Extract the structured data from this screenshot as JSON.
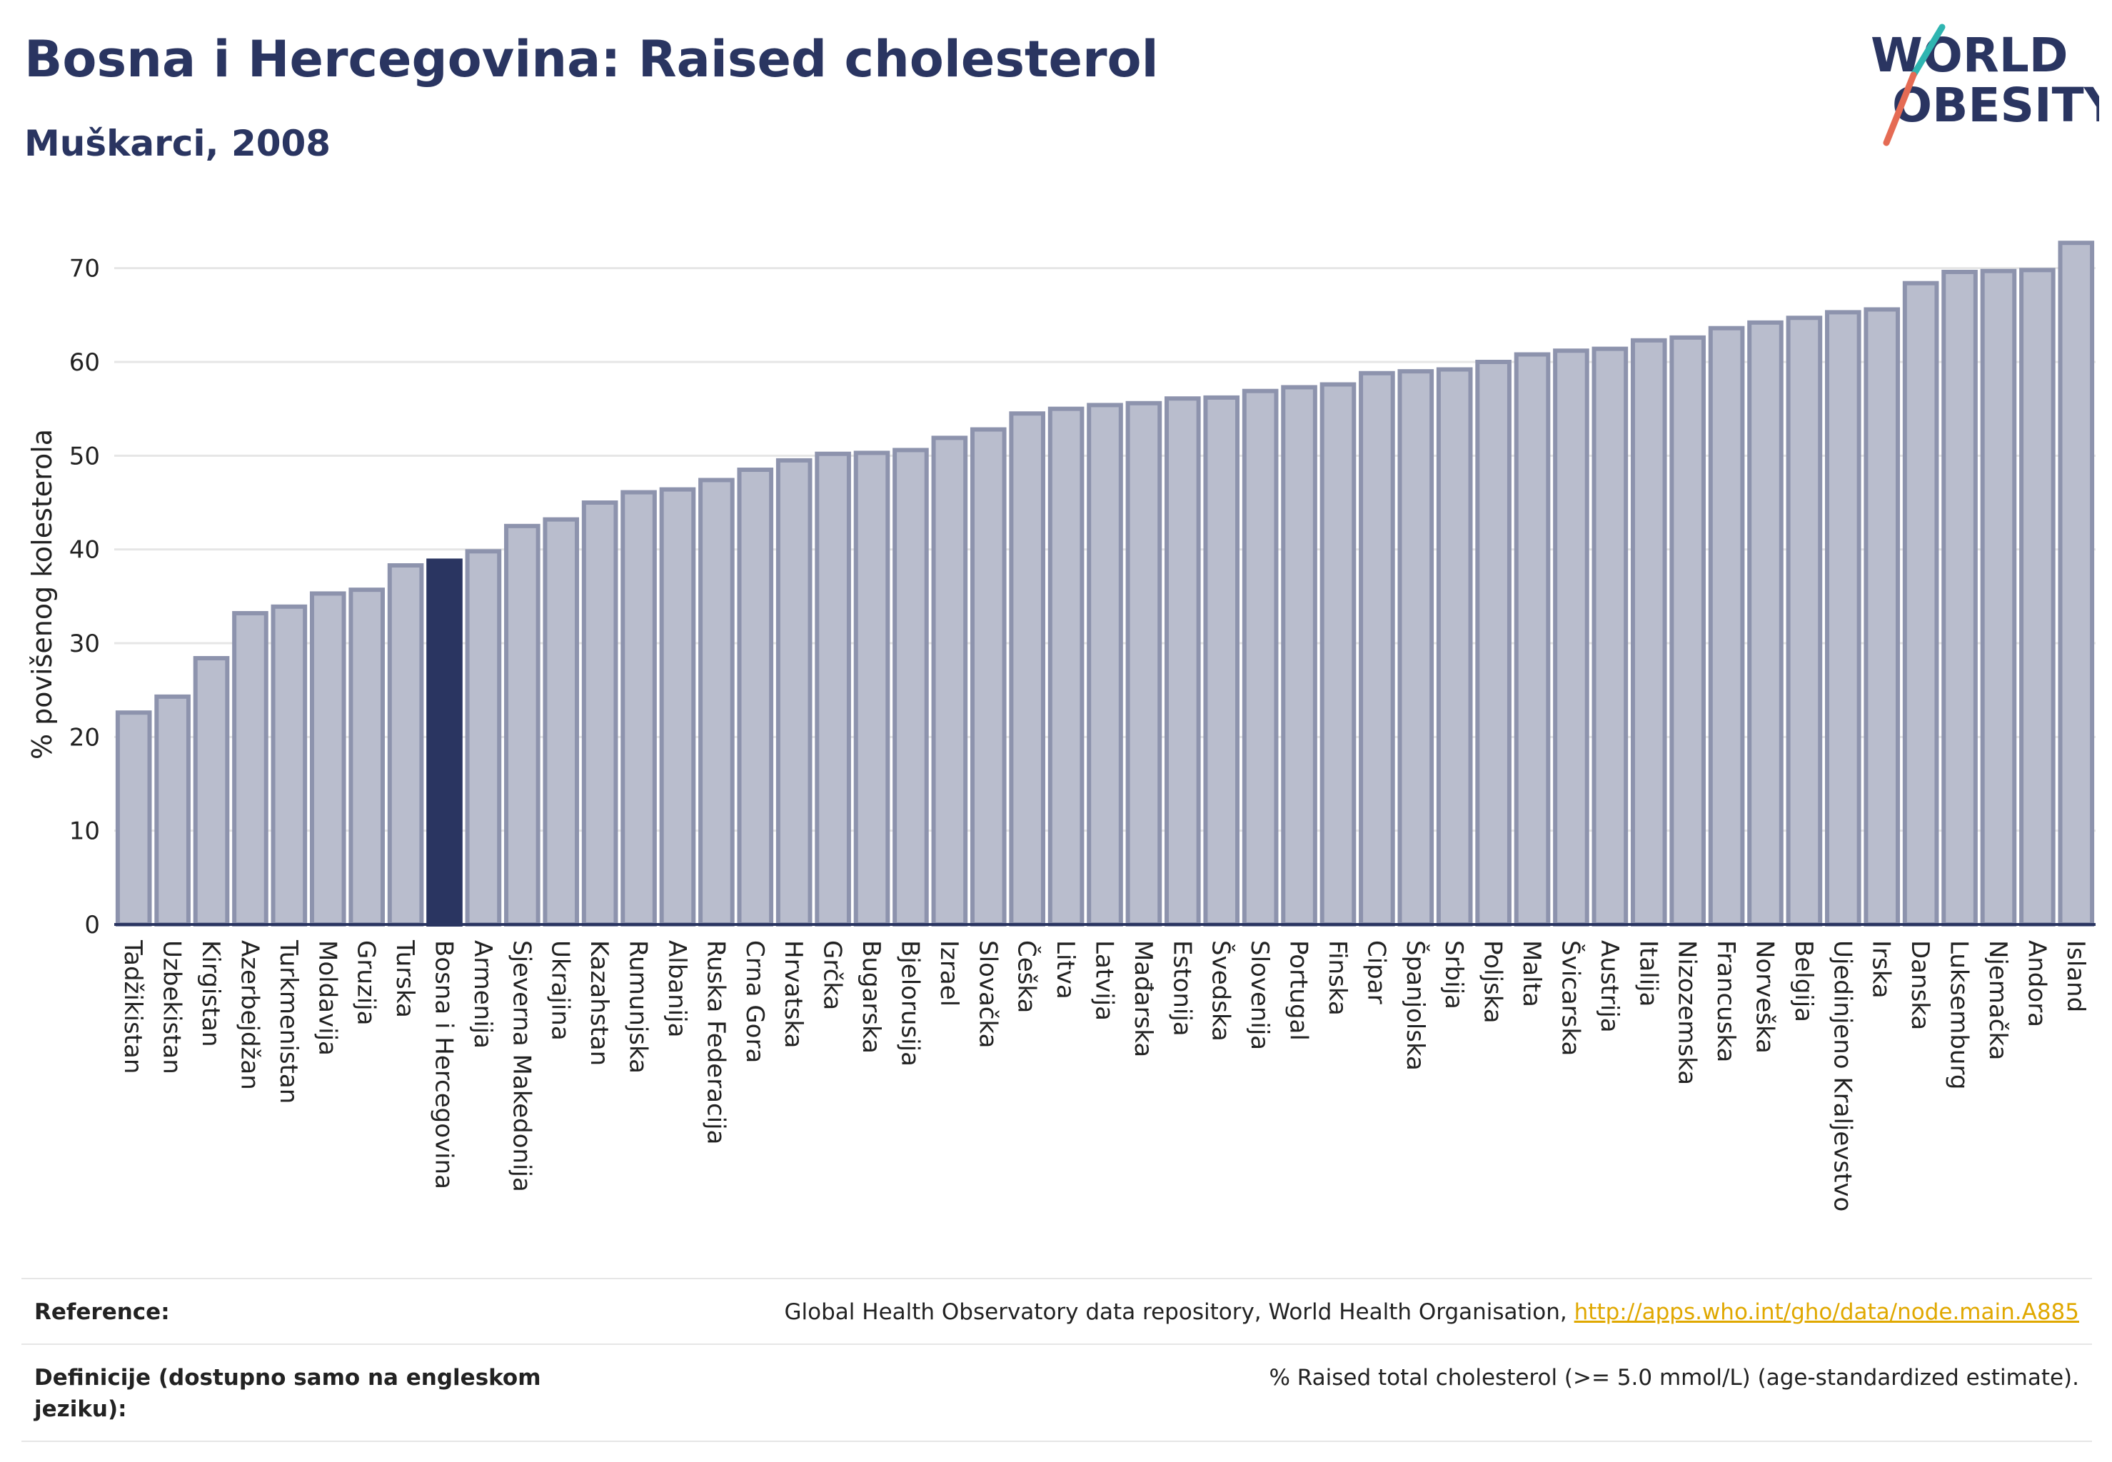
{
  "title": "Bosna i Hercegovina: Raised cholesterol",
  "subtitle": "Muškarci, 2008",
  "logo": {
    "line1": "WORLD",
    "line2": "OBESITY"
  },
  "footer": {
    "reference_label": "Reference:",
    "reference_text": "Global Health Observatory data repository, World Health Organisation, ",
    "reference_link": "http://apps.who.int/gho/data/node.main.A885",
    "definition_label": "Definicije (dostupno samo na engleskom jeziku):",
    "definition_text": "% Raised total cholesterol (>= 5.0 mmol/L) (age-standardized estimate)."
  },
  "colors": {
    "bar": "#b9bdcd",
    "bar_stroke": "#8d93ad",
    "highlight": "#2a3561",
    "grid": "#e6e6e6",
    "axis": "#2a3561"
  },
  "chart_data": {
    "type": "bar",
    "ylabel": "% povišenog kolesterola",
    "xlabel": "",
    "ylim": [
      0,
      75
    ],
    "yticks": [
      0,
      10,
      20,
      30,
      40,
      50,
      60,
      70
    ],
    "grid": true,
    "highlight": "Bosna i Hercegovina",
    "categories": [
      "Tadžikistan",
      "Uzbekistan",
      "Kirgistan",
      "Azerbejdžan",
      "Turkmenistan",
      "Moldavija",
      "Gruzija",
      "Turska",
      "Bosna i Hercegovina",
      "Armenija",
      "Sjeverna Makedonija",
      "Ukrajina",
      "Kazahstan",
      "Rumunjska",
      "Albanija",
      "Ruska Federacija",
      "Crna Gora",
      "Hrvatska",
      "Grčka",
      "Bugarska",
      "Bjelorusija",
      "Izrael",
      "Slovačka",
      "Češka",
      "Litva",
      "Latvija",
      "Mađarska",
      "Estonija",
      "Švedska",
      "Slovenija",
      "Portugal",
      "Finska",
      "Cipar",
      "Španjolska",
      "Srbija",
      "Poljska",
      "Malta",
      "Švicarska",
      "Austrija",
      "Italija",
      "Nizozemska",
      "Francuska",
      "Norveška",
      "Belgija",
      "Ujedinjeno Kraljevstvo",
      "Irska",
      "Danska",
      "Luksemburg",
      "Njemačka",
      "Andora",
      "Island"
    ],
    "values": [
      22.6,
      24.3,
      28.4,
      33.2,
      33.9,
      35.3,
      35.7,
      38.3,
      38.8,
      39.8,
      42.5,
      43.2,
      45.0,
      46.1,
      46.4,
      47.4,
      48.5,
      49.5,
      50.2,
      50.3,
      50.6,
      51.9,
      52.8,
      54.5,
      55.0,
      55.4,
      55.6,
      56.1,
      56.2,
      56.9,
      57.3,
      57.6,
      58.8,
      59.0,
      59.2,
      60.0,
      60.8,
      61.2,
      61.4,
      62.3,
      62.6,
      63.6,
      64.2,
      64.7,
      65.3,
      65.6,
      68.4,
      69.6,
      69.7,
      69.8,
      72.7
    ]
  }
}
